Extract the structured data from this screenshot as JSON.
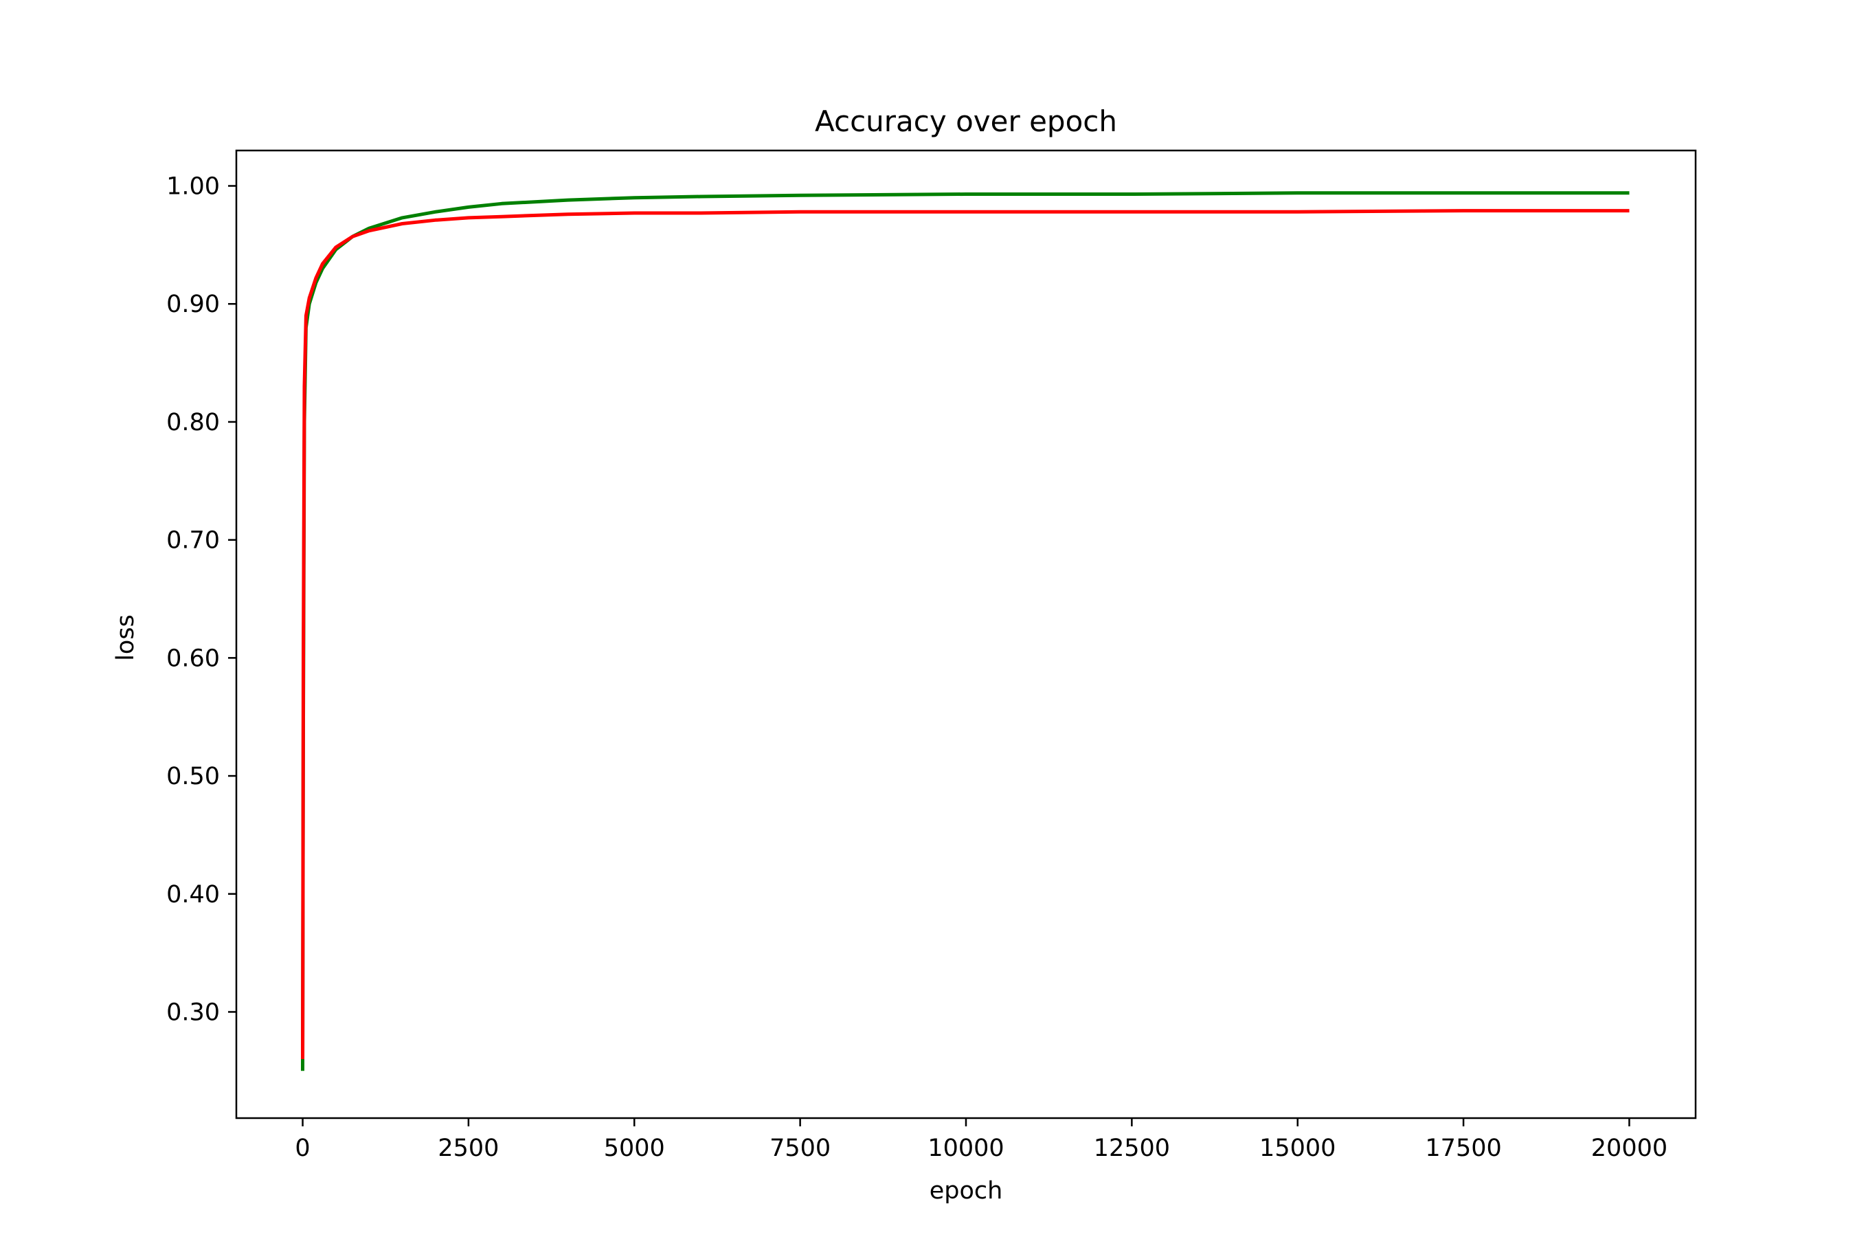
{
  "chart_data": {
    "type": "line",
    "title": "Accuracy over epoch",
    "xlabel": "epoch",
    "ylabel": "loss",
    "xlim": [
      -1000,
      21000
    ],
    "ylim": [
      0.21,
      1.03
    ],
    "xticks": [
      0,
      2500,
      5000,
      7500,
      10000,
      12500,
      15000,
      17500,
      20000
    ],
    "xtick_labels": [
      "0",
      "2500",
      "5000",
      "7500",
      "10000",
      "12500",
      "15000",
      "17500",
      "20000"
    ],
    "yticks": [
      0.3,
      0.4,
      0.5,
      0.6,
      0.7,
      0.8,
      0.9,
      1.0
    ],
    "ytick_labels": [
      "0.30",
      "0.40",
      "0.50",
      "0.60",
      "0.70",
      "0.80",
      "0.90",
      "1.00"
    ],
    "grid": false,
    "series": [
      {
        "color": "#008000",
        "x": [
          0,
          10,
          25,
          50,
          100,
          200,
          300,
          500,
          750,
          1000,
          1500,
          2000,
          2500,
          3000,
          4000,
          5000,
          6000,
          7500,
          10000,
          12500,
          15000,
          17500,
          20000
        ],
        "y": [
          0.25,
          0.55,
          0.8,
          0.88,
          0.9,
          0.918,
          0.93,
          0.946,
          0.957,
          0.964,
          0.973,
          0.978,
          0.982,
          0.985,
          0.988,
          0.99,
          0.991,
          0.992,
          0.993,
          0.993,
          0.994,
          0.994,
          0.994
        ]
      },
      {
        "color": "#ff0000",
        "x": [
          0,
          10,
          25,
          50,
          100,
          200,
          300,
          500,
          750,
          1000,
          1500,
          2000,
          2500,
          3000,
          4000,
          5000,
          6000,
          7500,
          10000,
          12500,
          15000,
          17500,
          20000
        ],
        "y": [
          0.26,
          0.6,
          0.83,
          0.89,
          0.905,
          0.922,
          0.934,
          0.948,
          0.957,
          0.962,
          0.968,
          0.971,
          0.973,
          0.974,
          0.976,
          0.977,
          0.977,
          0.978,
          0.978,
          0.978,
          0.978,
          0.979,
          0.979
        ]
      }
    ]
  }
}
